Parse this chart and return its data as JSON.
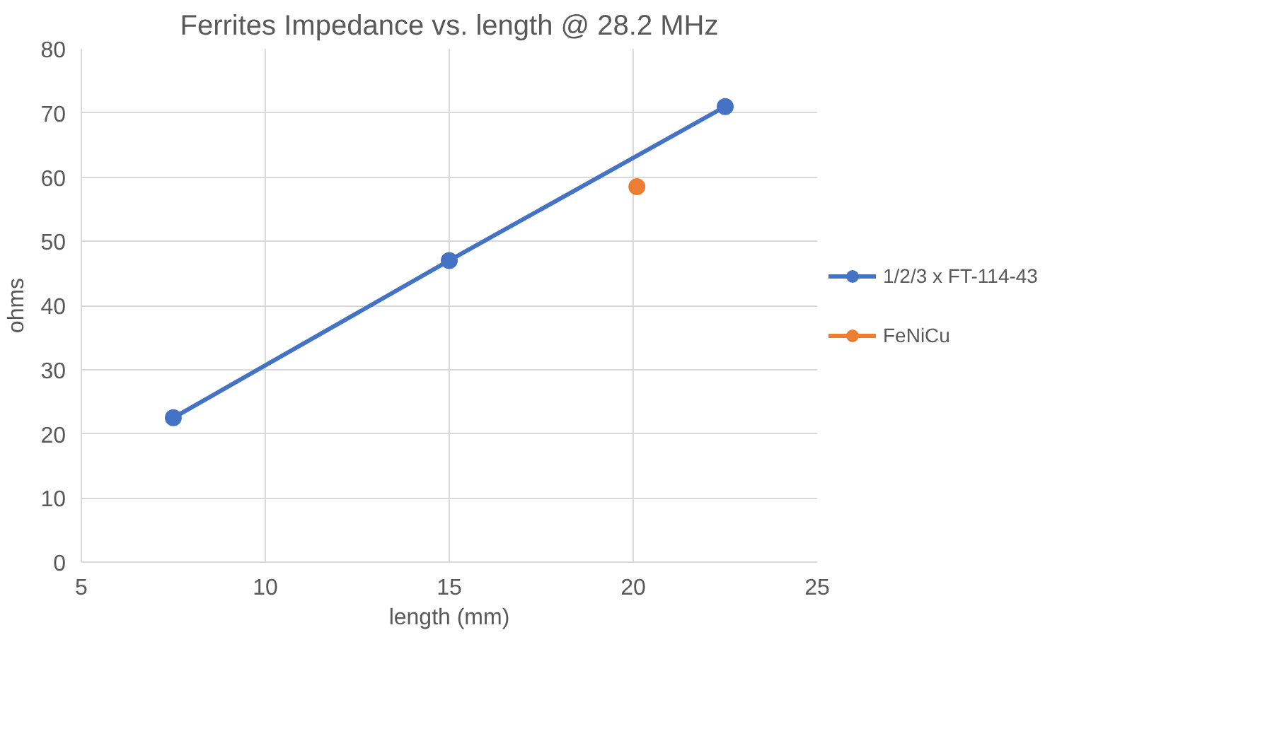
{
  "chart_data": {
    "type": "line",
    "title": "Ferrites Impedance vs. length @ 28.2 MHz",
    "xlabel": "length (mm)",
    "ylabel": "ohms",
    "xlim": [
      5,
      25
    ],
    "xticks": [
      5,
      10,
      15,
      20,
      25
    ],
    "ylim": [
      0,
      80
    ],
    "yticks": [
      0,
      10,
      20,
      30,
      40,
      50,
      60,
      70,
      80
    ],
    "grid": true,
    "legend": "right",
    "marker": "circle",
    "line_style": "solid",
    "series": [
      {
        "name": "1/2/3 x FT-114-43",
        "color": "#4472c4",
        "x": [
          7.5,
          15,
          22.5
        ],
        "values": [
          22.5,
          47,
          71
        ]
      },
      {
        "name": "FeNiCu",
        "color": "#ed7d31",
        "x": [
          20.1
        ],
        "values": [
          58.5
        ]
      }
    ]
  }
}
